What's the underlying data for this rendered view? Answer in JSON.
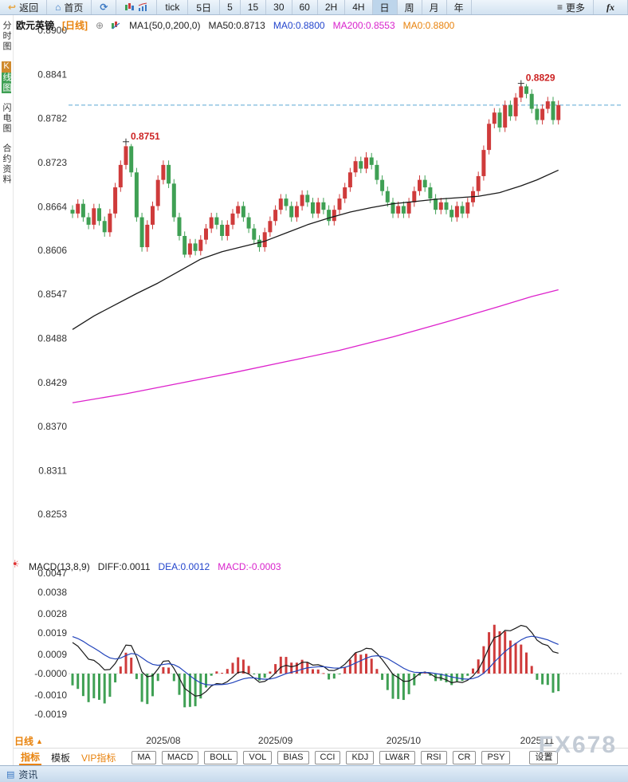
{
  "toolbar": {
    "back": "返回",
    "home": "首页",
    "tick": "tick",
    "five_day": "5日",
    "intervals": [
      "5",
      "15",
      "30",
      "60",
      "2H",
      "4H",
      "日",
      "周",
      "月",
      "年"
    ],
    "active_interval": "日",
    "more": "更多",
    "fx": "fx"
  },
  "sidebar": {
    "items": [
      {
        "label": "分时图",
        "active": false
      },
      {
        "label": "K线图",
        "active": true
      },
      {
        "label": "闪电图",
        "active": false
      },
      {
        "label": "合约资料",
        "active": false
      }
    ]
  },
  "price_pane": {
    "title": "欧元英镑",
    "period_tag": "[日线]",
    "legend": {
      "ma_group": "MA1(50,0,200,0)",
      "ma50": "MA50:0.8713",
      "ma0_blue": "MA0:0.8800",
      "ma200": "MA200:0.8553",
      "ma0_orange": "MA0:0.8800"
    }
  },
  "macd_pane": {
    "legend": {
      "name": "MACD(13,8,9)",
      "diff": "DIFF:0.0011",
      "dea": "DEA:0.0012",
      "macd": "MACD:-0.0003"
    }
  },
  "bottom": {
    "period": "日线",
    "period_arrow": "▲",
    "tabs": [
      {
        "label": "指标",
        "name": "indicators",
        "style": "active"
      },
      {
        "label": "模板",
        "name": "templates",
        "style": "plain"
      },
      {
        "label": "VIP指标",
        "name": "vip-indicators",
        "style": "vip"
      }
    ],
    "indicator_buttons": [
      "MA",
      "MACD",
      "BOLL",
      "VOL",
      "BIAS",
      "CCI",
      "KDJ",
      "LW&R",
      "RSI",
      "CR",
      "PSY"
    ],
    "settings": "设置",
    "news": "资讯"
  },
  "watermark": "FX678",
  "colors": {
    "up": "#cf3b3b",
    "down": "#3fa054",
    "ma50": "#1a1a1a",
    "ma200": "#dd22cc",
    "diff": "#1a1a1a",
    "dea": "#2244bb",
    "dashed": "#5aa7d4",
    "annotation": "#cc2222",
    "accent": "#e8820c"
  },
  "chart_data": {
    "type": "candlestick",
    "symbol": "欧元英镑",
    "period": "日线",
    "price_axis": {
      "labels": [
        "0.8900",
        "0.8841",
        "0.8782",
        "0.8723",
        "0.8664",
        "0.8606",
        "0.8547",
        "0.8488",
        "0.8429",
        "0.8370",
        "0.8311",
        "0.8253"
      ],
      "min": 0.8253,
      "max": 0.89
    },
    "macd_axis": {
      "labels": [
        "0.0047",
        "0.0038",
        "0.0028",
        "0.0019",
        "0.0009",
        "-0.0000",
        "-0.0010",
        "-0.0019"
      ]
    },
    "x_ticks": [
      {
        "label": "2025/08",
        "i": 17
      },
      {
        "label": "2025/09",
        "i": 38
      },
      {
        "label": "2025/10",
        "i": 62
      },
      {
        "label": "2025/11",
        "i": 87
      }
    ],
    "current_price": 0.88,
    "annotations": [
      {
        "text": "0.8751",
        "i": 10,
        "price": 0.8751
      },
      {
        "text": "0.8829",
        "i": 84,
        "price": 0.8829
      }
    ],
    "candles": [
      [
        0.866,
        0.8666,
        0.8649,
        0.8655
      ],
      [
        0.8655,
        0.8674,
        0.8649,
        0.8668
      ],
      [
        0.8668,
        0.8674,
        0.8644,
        0.865
      ],
      [
        0.865,
        0.8656,
        0.8634,
        0.864
      ],
      [
        0.864,
        0.8668,
        0.8634,
        0.8662
      ],
      [
        0.8662,
        0.8668,
        0.8639,
        0.8645
      ],
      [
        0.8645,
        0.8651,
        0.8624,
        0.863
      ],
      [
        0.863,
        0.8661,
        0.8624,
        0.8655
      ],
      [
        0.8655,
        0.8696,
        0.8649,
        0.869
      ],
      [
        0.869,
        0.8726,
        0.8684,
        0.872
      ],
      [
        0.872,
        0.8751,
        0.8714,
        0.8745
      ],
      [
        0.8745,
        0.8748,
        0.8704,
        0.871
      ],
      [
        0.871,
        0.8716,
        0.8644,
        0.865
      ],
      [
        0.865,
        0.8656,
        0.8604,
        0.861
      ],
      [
        0.861,
        0.8646,
        0.8604,
        0.864
      ],
      [
        0.864,
        0.8671,
        0.8634,
        0.8665
      ],
      [
        0.8665,
        0.8706,
        0.8659,
        0.87
      ],
      [
        0.87,
        0.8726,
        0.8694,
        0.872
      ],
      [
        0.872,
        0.8726,
        0.8689,
        0.8695
      ],
      [
        0.8695,
        0.8701,
        0.8644,
        0.865
      ],
      [
        0.865,
        0.8656,
        0.8619,
        0.8625
      ],
      [
        0.8625,
        0.8631,
        0.8596,
        0.86
      ],
      [
        0.86,
        0.8621,
        0.8596,
        0.8615
      ],
      [
        0.8615,
        0.8621,
        0.8599,
        0.8605
      ],
      [
        0.8605,
        0.8626,
        0.8599,
        0.862
      ],
      [
        0.862,
        0.8641,
        0.8614,
        0.8635
      ],
      [
        0.8635,
        0.8656,
        0.8629,
        0.865
      ],
      [
        0.865,
        0.8656,
        0.8634,
        0.864
      ],
      [
        0.864,
        0.8646,
        0.8619,
        0.8625
      ],
      [
        0.8625,
        0.8646,
        0.8619,
        0.864
      ],
      [
        0.864,
        0.8661,
        0.8634,
        0.8655
      ],
      [
        0.8655,
        0.8671,
        0.8649,
        0.8665
      ],
      [
        0.8665,
        0.8671,
        0.8644,
        0.865
      ],
      [
        0.865,
        0.8656,
        0.8629,
        0.8635
      ],
      [
        0.8635,
        0.8641,
        0.8614,
        0.862
      ],
      [
        0.862,
        0.8626,
        0.8604,
        0.861
      ],
      [
        0.861,
        0.8636,
        0.8604,
        0.863
      ],
      [
        0.863,
        0.8651,
        0.8624,
        0.8645
      ],
      [
        0.8645,
        0.8666,
        0.8639,
        0.866
      ],
      [
        0.866,
        0.8681,
        0.8654,
        0.8675
      ],
      [
        0.8675,
        0.8681,
        0.8659,
        0.8665
      ],
      [
        0.8665,
        0.8671,
        0.8644,
        0.865
      ],
      [
        0.865,
        0.8671,
        0.8644,
        0.8665
      ],
      [
        0.8665,
        0.8686,
        0.8659,
        0.868
      ],
      [
        0.868,
        0.8686,
        0.8664,
        0.867
      ],
      [
        0.867,
        0.8676,
        0.8649,
        0.8655
      ],
      [
        0.8655,
        0.8676,
        0.8649,
        0.867
      ],
      [
        0.867,
        0.8676,
        0.8654,
        0.866
      ],
      [
        0.866,
        0.8666,
        0.8639,
        0.8645
      ],
      [
        0.8645,
        0.8666,
        0.8639,
        0.866
      ],
      [
        0.866,
        0.8681,
        0.8654,
        0.8675
      ],
      [
        0.8675,
        0.8696,
        0.8669,
        0.869
      ],
      [
        0.869,
        0.8716,
        0.8684,
        0.871
      ],
      [
        0.871,
        0.8731,
        0.8704,
        0.8725
      ],
      [
        0.8725,
        0.8731,
        0.8709,
        0.8715
      ],
      [
        0.8715,
        0.8737,
        0.8709,
        0.873
      ],
      [
        0.873,
        0.8736,
        0.8714,
        0.872
      ],
      [
        0.872,
        0.8726,
        0.8694,
        0.87
      ],
      [
        0.87,
        0.8706,
        0.8679,
        0.8685
      ],
      [
        0.8685,
        0.8691,
        0.8664,
        0.867
      ],
      [
        0.867,
        0.8676,
        0.8649,
        0.8655
      ],
      [
        0.8655,
        0.8671,
        0.8649,
        0.8665
      ],
      [
        0.8665,
        0.8671,
        0.8649,
        0.8655
      ],
      [
        0.8655,
        0.8676,
        0.8649,
        0.867
      ],
      [
        0.867,
        0.8691,
        0.8664,
        0.8685
      ],
      [
        0.8685,
        0.8706,
        0.8679,
        0.87
      ],
      [
        0.87,
        0.8706,
        0.8684,
        0.869
      ],
      [
        0.869,
        0.8696,
        0.8669,
        0.8675
      ],
      [
        0.8675,
        0.8681,
        0.8654,
        0.866
      ],
      [
        0.866,
        0.8676,
        0.8654,
        0.867
      ],
      [
        0.867,
        0.8676,
        0.8654,
        0.866
      ],
      [
        0.866,
        0.8666,
        0.8644,
        0.865
      ],
      [
        0.865,
        0.8671,
        0.8644,
        0.8665
      ],
      [
        0.8665,
        0.8671,
        0.8649,
        0.8655
      ],
      [
        0.8655,
        0.8676,
        0.8649,
        0.867
      ],
      [
        0.867,
        0.8691,
        0.8664,
        0.8685
      ],
      [
        0.8685,
        0.8711,
        0.8679,
        0.8705
      ],
      [
        0.8705,
        0.8746,
        0.8699,
        0.874
      ],
      [
        0.874,
        0.8781,
        0.8734,
        0.8775
      ],
      [
        0.8775,
        0.8796,
        0.8769,
        0.879
      ],
      [
        0.879,
        0.8796,
        0.8764,
        0.877
      ],
      [
        0.877,
        0.8806,
        0.8764,
        0.88
      ],
      [
        0.88,
        0.8806,
        0.8779,
        0.8785
      ],
      [
        0.8785,
        0.8816,
        0.8779,
        0.881
      ],
      [
        0.881,
        0.8829,
        0.8804,
        0.8825
      ],
      [
        0.8825,
        0.8828,
        0.8809,
        0.8815
      ],
      [
        0.8815,
        0.8821,
        0.8789,
        0.8795
      ],
      [
        0.8795,
        0.8801,
        0.8774,
        0.878
      ],
      [
        0.878,
        0.8801,
        0.8774,
        0.8795
      ],
      [
        0.8795,
        0.8811,
        0.8789,
        0.8805
      ],
      [
        0.8805,
        0.8811,
        0.8774,
        0.878
      ],
      [
        0.878,
        0.8806,
        0.8774,
        0.88
      ]
    ],
    "ma50_points": [
      [
        0,
        0.85
      ],
      [
        4,
        0.8518
      ],
      [
        8,
        0.8533
      ],
      [
        12,
        0.8548
      ],
      [
        16,
        0.8562
      ],
      [
        20,
        0.8578
      ],
      [
        24,
        0.8594
      ],
      [
        28,
        0.8604
      ],
      [
        32,
        0.8611
      ],
      [
        36,
        0.8618
      ],
      [
        40,
        0.8629
      ],
      [
        44,
        0.864
      ],
      [
        48,
        0.8649
      ],
      [
        52,
        0.8657
      ],
      [
        56,
        0.8663
      ],
      [
        60,
        0.8668
      ],
      [
        64,
        0.8671
      ],
      [
        68,
        0.8674
      ],
      [
        72,
        0.8676
      ],
      [
        76,
        0.8678
      ],
      [
        80,
        0.8683
      ],
      [
        84,
        0.8692
      ],
      [
        87,
        0.87
      ],
      [
        91,
        0.8713
      ]
    ],
    "ma200_points": [
      [
        0,
        0.8402
      ],
      [
        10,
        0.8414
      ],
      [
        20,
        0.8428
      ],
      [
        30,
        0.8442
      ],
      [
        40,
        0.8457
      ],
      [
        50,
        0.8472
      ],
      [
        60,
        0.849
      ],
      [
        70,
        0.851
      ],
      [
        80,
        0.8531
      ],
      [
        86,
        0.8544
      ],
      [
        91,
        0.8553
      ]
    ],
    "macd": {
      "params": "13,8,9",
      "diff": 0.0011,
      "dea": 0.0012,
      "hist": -0.0003
    }
  }
}
